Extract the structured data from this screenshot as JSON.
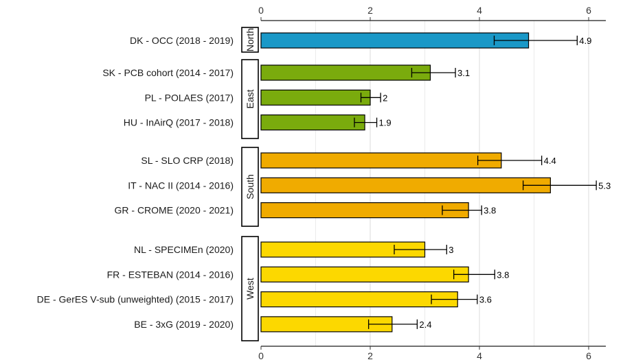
{
  "chart_data": {
    "type": "bar",
    "orientation": "horizontal",
    "title": "",
    "xlabel": "",
    "ylabel": "",
    "xlim": [
      0,
      6.5
    ],
    "x_ticks": [
      "0",
      "2",
      "4",
      "6"
    ],
    "grid": "vertical",
    "error_bars": true,
    "panels": [
      {
        "name": "North",
        "color": "#1a98c7",
        "bars": [
          {
            "label": "DK - OCC (2018 - 2019)",
            "value": 4.9,
            "value_label": "4.9",
            "ci": [
              4.27,
              5.79
            ]
          }
        ]
      },
      {
        "name": "East",
        "color": "#7aab0d",
        "bars": [
          {
            "label": "SK - PCB cohort (2014 - 2017)",
            "value": 3.1,
            "value_label": "3.1",
            "ci": [
              2.76,
              3.56
            ]
          },
          {
            "label": "PL - POLAES (2017)",
            "value": 2.0,
            "value_label": "2",
            "ci": [
              1.83,
              2.19
            ]
          },
          {
            "label": "HU - InAirQ (2017 - 2018)",
            "value": 1.9,
            "value_label": "1.9",
            "ci": [
              1.71,
              2.12
            ]
          }
        ]
      },
      {
        "name": "South",
        "color": "#f0ab00",
        "bars": [
          {
            "label": "SL - SLO CRP (2018)",
            "value": 4.4,
            "value_label": "4.4",
            "ci": [
              3.97,
              5.14
            ]
          },
          {
            "label": "IT - NAC II (2014 - 2016)",
            "value": 5.3,
            "value_label": "5.3",
            "ci": [
              4.8,
              6.14
            ]
          },
          {
            "label": "GR - CROME (2020 - 2021)",
            "value": 3.8,
            "value_label": "3.8",
            "ci": [
              3.32,
              4.04
            ]
          }
        ]
      },
      {
        "name": "West",
        "color": "#fcd800",
        "bars": [
          {
            "label": "NL - SPECIMEn (2020)",
            "value": 3.0,
            "value_label": "3",
            "ci": [
              2.44,
              3.4
            ]
          },
          {
            "label": "FR - ESTEBAN (2014 - 2016)",
            "value": 3.8,
            "value_label": "3.8",
            "ci": [
              3.53,
              4.28
            ]
          },
          {
            "label": "DE - GerES V-sub (unweighted) (2015 - 2017)",
            "value": 3.6,
            "value_label": "3.6",
            "ci": [
              3.12,
              3.96
            ]
          },
          {
            "label": "BE - 3xG (2019 - 2020)",
            "value": 2.4,
            "value_label": "2.4",
            "ci": [
              1.97,
              2.86
            ]
          }
        ]
      }
    ]
  }
}
